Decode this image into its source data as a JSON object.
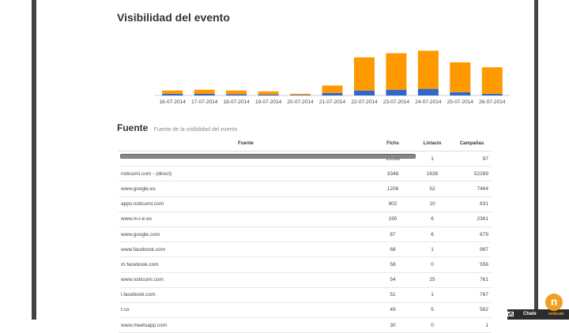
{
  "chart_data": {
    "type": "bar",
    "title": "Visibilidad del evento",
    "categories": [
      "16-07-2014",
      "17-07-2014",
      "18-07-2014",
      "19-07-2014",
      "20-07-2014",
      "21-07-2014",
      "22-07-2014",
      "23-07-2014",
      "24-07-2014",
      "25-07-2014",
      "26-07-2014"
    ],
    "series": [
      {
        "values": [
          2,
          2,
          1.5,
          1.2,
          0.8,
          3,
          6,
          7,
          8,
          4,
          2
        ]
      },
      {
        "values": [
          4,
          5,
          4.5,
          3.8,
          1.2,
          9,
          40,
          44,
          46,
          36,
          32
        ]
      }
    ],
    "ylim": [
      0,
      60
    ],
    "grid": false,
    "colors": [
      "#3366cc",
      "#ff9900"
    ]
  },
  "header": {
    "section_title": "Visibilidad del evento"
  },
  "fuente": {
    "title": "Fuente",
    "subtitle": "Fuente de la visibilidad del evento"
  },
  "table": {
    "columns": [
      "Fuente",
      "Fichs",
      "Líxtacio",
      "Campañas"
    ],
    "rows": [
      [
        "",
        "15538",
        "1",
        "97"
      ],
      [
        "noticumi.com - (direct)",
        "3348",
        "1638",
        "52289"
      ],
      [
        "www.google.es",
        "1206",
        "52",
        "7464"
      ],
      [
        "apps.noticumi.com",
        "902",
        "10",
        "631"
      ],
      [
        "www.m-i-e.es",
        "190",
        "6",
        "2361"
      ],
      [
        "www.google.com",
        "87",
        "6",
        "679"
      ],
      [
        "www.facebook.com",
        "68",
        "1",
        "997"
      ],
      [
        "m.facebook.com",
        "58",
        "0",
        "556"
      ],
      [
        "www.noticumi.com",
        "54",
        "25",
        "761"
      ],
      [
        "l.facebook.com",
        "51",
        "1",
        "767"
      ],
      [
        "t.co",
        "49",
        "5",
        "562"
      ],
      [
        "www.meetsapp.com",
        "30",
        "0",
        "1"
      ]
    ]
  },
  "chat": {
    "label": "Chate"
  },
  "brand": {
    "logo_glyph": "n",
    "text": "noticum"
  }
}
